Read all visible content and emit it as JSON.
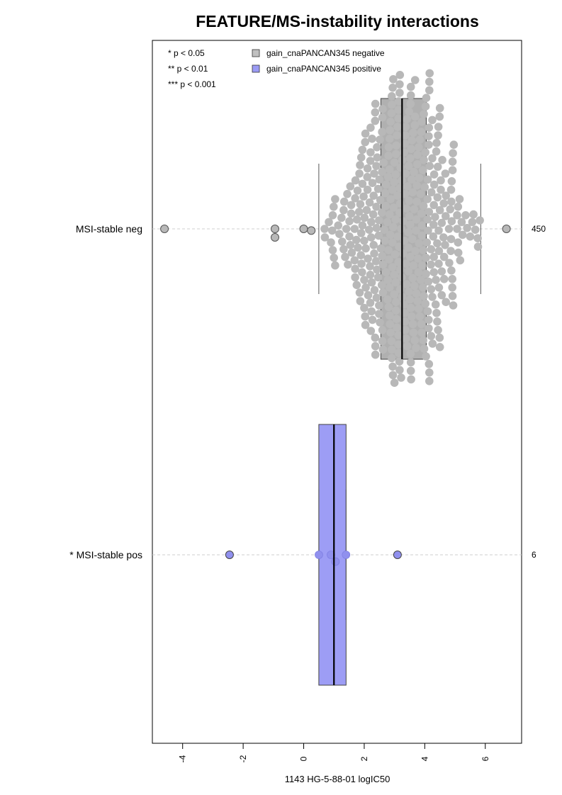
{
  "chart_data": {
    "type": "box-beeswarm",
    "title": "FEATURE/MS-instability interactions",
    "xlabel": "1143 HG-5-88-01 logIC50",
    "xlim": [
      -5,
      7.2
    ],
    "xticks": [
      -4,
      -2,
      0,
      2,
      4,
      6
    ],
    "xtick_labels": [
      "-4",
      "-2",
      "0",
      "2",
      "4",
      "6"
    ],
    "grid": false,
    "significance_legend": [
      "* p < 0.05",
      "** p < 0.01",
      "*** p < 0.001"
    ],
    "legend": [
      {
        "label": "gain_cnaPANCAN345 negative",
        "color": "#c0c0c0"
      },
      {
        "label": "gain_cnaPANCAN345 positive",
        "color": "#9b9bf5"
      }
    ],
    "groups": [
      {
        "label": "MSI-stable neg",
        "count": "450",
        "box_color": "#b0b0b0",
        "point_color": "#b8b8b8",
        "whisker_low": 0.5,
        "q1": 2.55,
        "median": 3.25,
        "q3": 4.05,
        "whisker_high": 5.85,
        "n_points": 450,
        "outliers": [
          -4.6,
          -0.95,
          -0.95,
          0.0,
          0.25,
          6.7
        ]
      },
      {
        "label": "* MSI-stable pos",
        "count": "6",
        "box_color": "#9d9df5",
        "point_color": "#9090ee",
        "whisker_low": 0.5,
        "q1": 0.5,
        "median": 1.0,
        "q3": 1.4,
        "whisker_high": 1.4,
        "points": [
          -2.45,
          0.5,
          0.9,
          1.05,
          1.4,
          3.1
        ],
        "outliers": [
          -2.45,
          3.1
        ]
      }
    ]
  }
}
